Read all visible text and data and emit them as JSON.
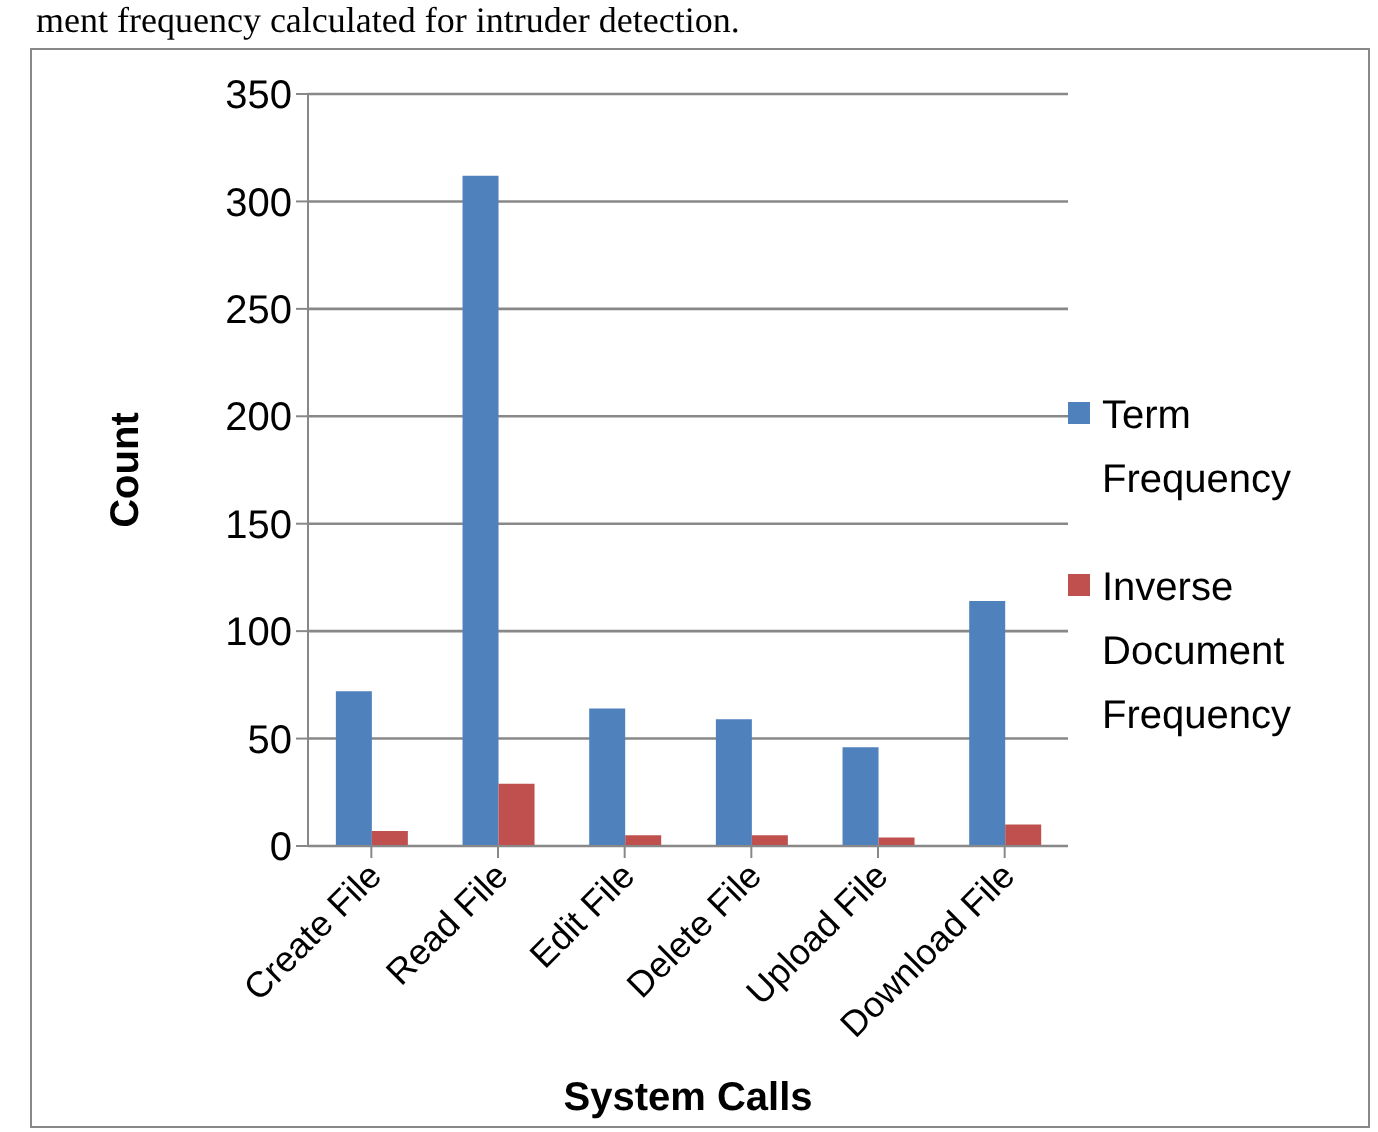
{
  "chart_data": {
    "type": "bar",
    "xlabel": "System Calls",
    "ylabel": "Count",
    "annotations": [
      "ment frequency calculated for intruder detection."
    ],
    "categories": [
      "Create File",
      "Read File",
      "Edit File",
      "Delete File",
      "Upload File",
      "Download File"
    ],
    "series": [
      {
        "name": "Term Frequency",
        "color": "#4f81bd",
        "values": [
          72,
          312,
          64,
          59,
          46,
          114
        ]
      },
      {
        "name": "Inverse Document Frequency",
        "color": "#c0504d",
        "values": [
          7,
          29,
          5,
          5,
          4,
          10
        ]
      }
    ],
    "ylim": [
      0,
      350
    ],
    "yticks": [
      0,
      50,
      100,
      150,
      200,
      250,
      300,
      350
    ],
    "grid": "y",
    "legend": "right"
  }
}
